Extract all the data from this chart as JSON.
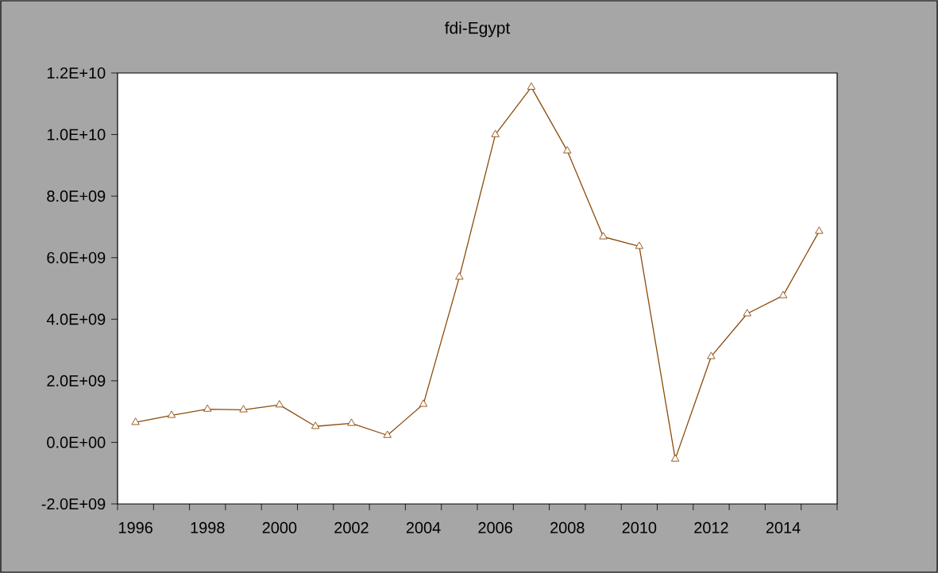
{
  "chart_data": {
    "type": "line",
    "title": "fdi-Egypt",
    "x": [
      1996,
      1997,
      1998,
      1999,
      2000,
      2001,
      2002,
      2003,
      2004,
      2005,
      2006,
      2007,
      2008,
      2009,
      2010,
      2011,
      2012,
      2013,
      2014,
      2015
    ],
    "series": [
      {
        "color": "#8c4a0a",
        "values": [
          650000000,
          880000000,
          1080000000,
          1060000000,
          1220000000,
          520000000,
          620000000,
          230000000,
          1240000000,
          5370000000,
          10000000000,
          11540000000,
          9470000000,
          6680000000,
          6370000000,
          -540000000,
          2790000000,
          4180000000,
          4770000000,
          6860000000
        ]
      }
    ],
    "xlim": [
      1995.5,
      2015.5
    ],
    "xticks": [
      {
        "value": 1996,
        "label": "1996"
      },
      {
        "value": 1998,
        "label": "1998"
      },
      {
        "value": 2000,
        "label": "2000"
      },
      {
        "value": 2002,
        "label": "2002"
      },
      {
        "value": 2004,
        "label": "2004"
      },
      {
        "value": 2006,
        "label": "2006"
      },
      {
        "value": 2008,
        "label": "2008"
      },
      {
        "value": 2010,
        "label": "2010"
      },
      {
        "value": 2012,
        "label": "2012"
      },
      {
        "value": 2014,
        "label": "2014"
      },
      {
        "value": 1995.5,
        "label": null
      },
      {
        "value": 1996.5,
        "label": null
      },
      {
        "value": 1997.5,
        "label": null
      },
      {
        "value": 1998.5,
        "label": null
      },
      {
        "value": 1999.5,
        "label": null
      },
      {
        "value": 2000.5,
        "label": null
      },
      {
        "value": 2001.5,
        "label": null
      },
      {
        "value": 2002.5,
        "label": null
      },
      {
        "value": 2003.5,
        "label": null
      },
      {
        "value": 2004.5,
        "label": null
      },
      {
        "value": 2005.5,
        "label": null
      },
      {
        "value": 2006.5,
        "label": null
      },
      {
        "value": 2007.5,
        "label": null
      },
      {
        "value": 2008.5,
        "label": null
      },
      {
        "value": 2009.5,
        "label": null
      },
      {
        "value": 2010.5,
        "label": null
      },
      {
        "value": 2011.5,
        "label": null
      },
      {
        "value": 2012.5,
        "label": null
      },
      {
        "value": 2013.5,
        "label": null
      },
      {
        "value": 2014.5,
        "label": null
      },
      {
        "value": 2015.5,
        "label": null
      }
    ],
    "ylim": [
      -2000000000,
      12000000000
    ],
    "yticks": [
      {
        "value": -2000000000,
        "label": "-2.0E+09"
      },
      {
        "value": 0,
        "label": "0.0E+00"
      },
      {
        "value": 2000000000,
        "label": "2.0E+09"
      },
      {
        "value": 4000000000,
        "label": "4.0E+09"
      },
      {
        "value": 6000000000,
        "label": "6.0E+09"
      },
      {
        "value": 8000000000,
        "label": "8.0E+09"
      },
      {
        "value": 10000000000,
        "label": "1.0E+10"
      },
      {
        "value": 12000000000,
        "label": "1.2E+10"
      }
    ],
    "marker": "triangle",
    "line_style": "solid"
  }
}
